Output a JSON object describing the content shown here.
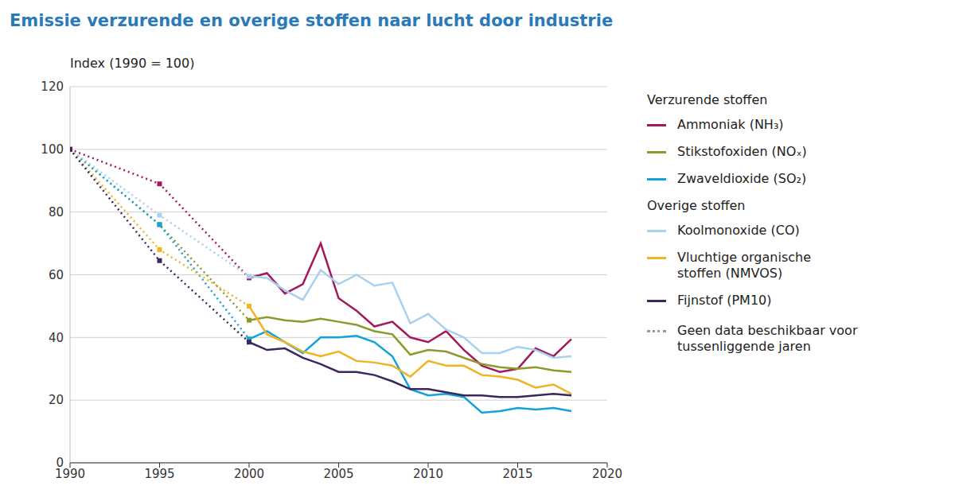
{
  "chart_data": {
    "type": "line",
    "title": "Emissie verzurende en overige stoffen naar lucht door industrie",
    "y_label": "Index (1990 = 100)",
    "x": [
      1990,
      1995,
      2000,
      2001,
      2002,
      2003,
      2004,
      2005,
      2006,
      2007,
      2008,
      2009,
      2010,
      2011,
      2012,
      2013,
      2014,
      2015,
      2016,
      2017,
      2018
    ],
    "xlim": [
      1990,
      2020
    ],
    "xticks": [
      1990,
      1995,
      2000,
      2005,
      2010,
      2015,
      2020
    ],
    "ylim": [
      0,
      120
    ],
    "yticks": [
      0,
      20,
      40,
      60,
      80,
      100,
      120
    ],
    "grid": true,
    "series": [
      {
        "name": "Ammoniak (NH₃)",
        "group": "Verzurende stoffen",
        "color": "#a3195b",
        "line_style": "solid",
        "values": [
          100,
          89,
          59,
          60.5,
          54,
          57,
          70,
          52.5,
          48.5,
          43.5,
          45,
          40,
          38.5,
          42,
          36,
          31,
          29,
          30,
          36.5,
          34,
          39.5
        ]
      },
      {
        "name": "Stikstofoxiden (NOₓ)",
        "group": "Verzurende stoffen",
        "color": "#8c9a2b",
        "line_style": "solid",
        "values": [
          100,
          76,
          45.5,
          46.5,
          45.5,
          45,
          46,
          45,
          44,
          42,
          41,
          34.5,
          36,
          35.5,
          33.5,
          31.5,
          30.5,
          30,
          30.5,
          29.5,
          29
        ]
      },
      {
        "name": "Zwaveldioxide (SO₂)",
        "group": "Verzurende stoffen",
        "color": "#11a3dc",
        "line_style": "solid",
        "values": [
          100,
          76,
          39.5,
          42,
          38.5,
          35,
          40,
          40,
          40.5,
          38.5,
          34,
          23.5,
          21.5,
          22,
          21,
          16,
          16.5,
          17.5,
          17,
          17.5,
          16.5
        ]
      },
      {
        "name": "Koolmonoxide (CO)",
        "group": "Overige stoffen",
        "color": "#a8d0ef",
        "line_style": "solid",
        "values": [
          100,
          79,
          59.5,
          59,
          55,
          52,
          61.5,
          57,
          60,
          56.5,
          57.5,
          44.5,
          47.5,
          42.5,
          40,
          35,
          35,
          37,
          36,
          33.5,
          34
        ]
      },
      {
        "name": "Vluchtige organische stoffen (NMVOS)",
        "group": "Overige stoffen",
        "color": "#f0b323",
        "line_style": "solid",
        "values": [
          100,
          68,
          50,
          41,
          38.5,
          35.5,
          34,
          35.5,
          32.5,
          32,
          31,
          27.5,
          32.5,
          31,
          31,
          28,
          27.5,
          26.5,
          24,
          25,
          22
        ]
      },
      {
        "name": "Fijnstof (PM10)",
        "group": "Overige stoffen",
        "color": "#3c2660",
        "line_style": "solid",
        "values": [
          100,
          64.5,
          38.5,
          36,
          36.5,
          33.5,
          31.5,
          29,
          29,
          28,
          26,
          23.5,
          23.5,
          22.5,
          21.5,
          21.5,
          21,
          21,
          21.5,
          22,
          21.5
        ]
      }
    ],
    "gap_note": {
      "text": "Geen data beschikbaar voor tussenliggende jaren",
      "line_style": "dotted",
      "marker": "square",
      "color": "#9a9a9a"
    }
  }
}
